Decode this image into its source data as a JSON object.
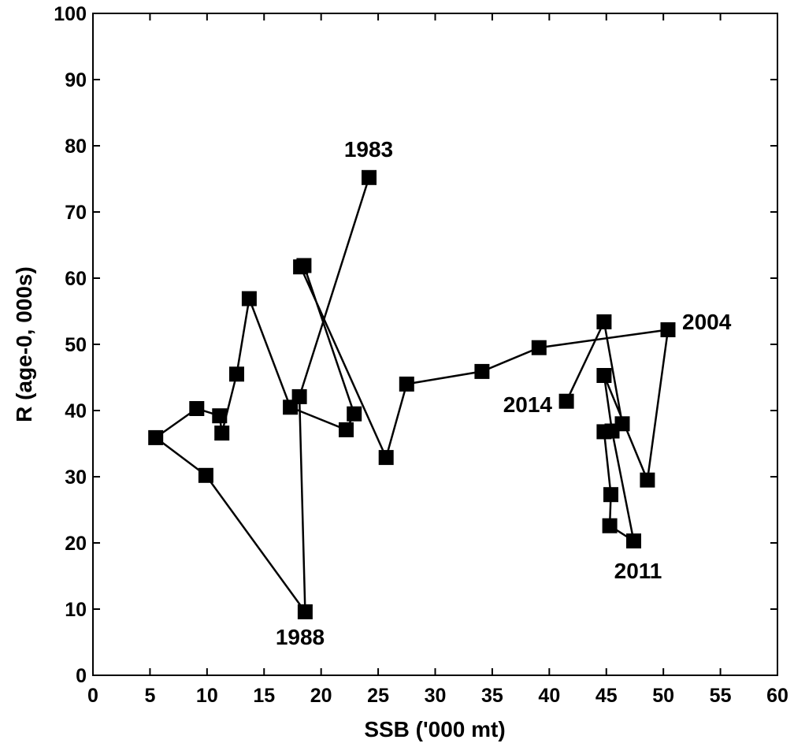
{
  "chart_data": {
    "type": "scatter",
    "title": "",
    "xlabel": "SSB ('000 mt)",
    "ylabel": "R (age-0, 000s)",
    "xlim": [
      0,
      60
    ],
    "ylim": [
      0,
      100
    ],
    "xticks": [
      0,
      5,
      10,
      15,
      20,
      25,
      30,
      35,
      40,
      45,
      50,
      55,
      60
    ],
    "yticks": [
      0,
      10,
      20,
      30,
      40,
      50,
      60,
      70,
      80,
      90,
      100
    ],
    "grid": false,
    "legend": "none",
    "connected": true,
    "marker": "square",
    "color": "#000000",
    "series": [
      {
        "x": [
          24.2,
          18.1,
          18.6,
          9.9,
          5.5,
          9.1,
          11.1,
          11.3,
          12.6,
          13.7,
          17.3,
          22.2,
          22.9,
          18.5,
          18.2,
          25.7,
          27.5,
          34.1,
          39.1,
          50.4,
          48.6,
          44.8,
          45.5,
          47.4,
          45.3,
          45.4,
          44.8,
          46.4,
          44.8,
          41.5
        ],
        "y": [
          75.2,
          42.1,
          9.6,
          30.2,
          35.9,
          40.3,
          39.2,
          36.6,
          45.5,
          56.9,
          40.5,
          37.1,
          39.5,
          61.9,
          61.7,
          32.9,
          44.0,
          45.9,
          49.5,
          52.2,
          29.5,
          45.3,
          36.9,
          20.3,
          22.6,
          27.3,
          36.8,
          38.0,
          53.4,
          41.4
        ]
      }
    ],
    "annotations": [
      {
        "text": "1983",
        "x": 24.2,
        "y": 75.2
      },
      {
        "text": "1988",
        "x": 18.6,
        "y": 9.6
      },
      {
        "text": "2004",
        "x": 50.4,
        "y": 52.2
      },
      {
        "text": "2011",
        "x": 47.4,
        "y": 20.3
      },
      {
        "text": "2014",
        "x": 41.5,
        "y": 41.4
      }
    ]
  }
}
